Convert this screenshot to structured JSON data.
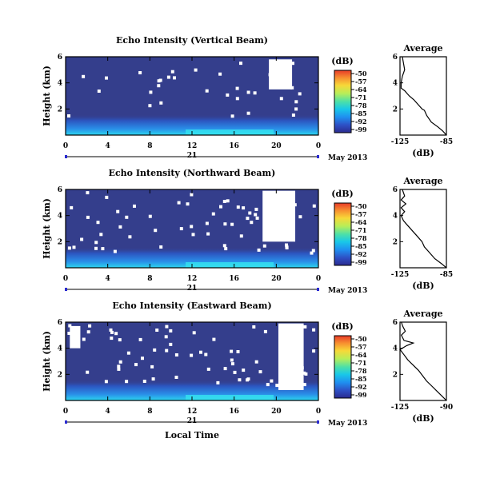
{
  "x_axis": {
    "ticks": [
      "0",
      "4",
      "8",
      "12",
      "16",
      "20",
      "0"
    ],
    "day": "21",
    "date_label": "May 2013",
    "xlabel": "Local Time"
  },
  "colorbar": {
    "unit": "(dB)",
    "ticks": [
      "-50",
      "-57",
      "-64",
      "-71",
      "-78",
      "-85",
      "-92",
      "-99"
    ]
  },
  "profile": {
    "title": "Average",
    "xlabel": "(dB)"
  },
  "colors": {
    "background_field": "#343e8c",
    "missing": "#ffffff",
    "colormap": [
      "#2b2b8f",
      "#2e4fc4",
      "#1f8ff0",
      "#19c8e8",
      "#4de0a8",
      "#b8ee58",
      "#f7d838",
      "#f79030",
      "#e83a28"
    ]
  },
  "chart_data": [
    {
      "type": "heatmap",
      "title": "Echo Intensity (Vertical Beam)",
      "ylabel": "Height (km)",
      "yticks": [
        "2",
        "4",
        "6"
      ],
      "ylim": [
        0,
        6
      ],
      "xlim": [
        0,
        24
      ],
      "missing_regions": [
        {
          "t": [
            19.3,
            21.5
          ],
          "h": [
            3.5,
            5.8
          ]
        }
      ],
      "profile": {
        "xlim": [
          -125,
          -85
        ],
        "xticks": [
          "-125",
          "-85"
        ],
        "yticks": [
          "2",
          "4",
          "6"
        ],
        "points": [
          [
            -85,
            0.0
          ],
          [
            -88,
            0.3
          ],
          [
            -92,
            0.6
          ],
          [
            -98,
            1.0
          ],
          [
            -102,
            1.5
          ],
          [
            -104,
            1.9
          ],
          [
            -106,
            2.0
          ],
          [
            -109,
            2.3
          ],
          [
            -113,
            2.7
          ],
          [
            -117,
            3.0
          ],
          [
            -121,
            3.4
          ],
          [
            -124,
            3.6
          ],
          [
            -124,
            4.0
          ],
          [
            -123,
            4.5
          ],
          [
            -121,
            5.0
          ],
          [
            -122,
            5.5
          ],
          [
            -123,
            6.0
          ]
        ]
      }
    },
    {
      "type": "heatmap",
      "title": "Echo Intensity (Northward Beam)",
      "ylabel": "Height (km)",
      "yticks": [
        "2",
        "4",
        "6"
      ],
      "ylim": [
        0,
        6
      ],
      "xlim": [
        0,
        24
      ],
      "missing_regions": [
        {
          "t": [
            18.7,
            21.8
          ],
          "h": [
            2.0,
            5.9
          ]
        }
      ],
      "profile": {
        "xlim": [
          -125,
          -85
        ],
        "xticks": [
          "-125",
          "-85"
        ],
        "yticks": [
          "2",
          "4",
          "6"
        ],
        "points": [
          [
            -85,
            0.0
          ],
          [
            -89,
            0.3
          ],
          [
            -95,
            0.7
          ],
          [
            -100,
            1.2
          ],
          [
            -104,
            1.6
          ],
          [
            -106,
            2.0
          ],
          [
            -110,
            2.4
          ],
          [
            -114,
            2.8
          ],
          [
            -118,
            3.2
          ],
          [
            -122,
            3.6
          ],
          [
            -124,
            4.0
          ],
          [
            -121,
            4.3
          ],
          [
            -124,
            4.6
          ],
          [
            -120,
            4.9
          ],
          [
            -124,
            5.2
          ],
          [
            -121,
            5.5
          ],
          [
            -123,
            6.0
          ]
        ]
      }
    },
    {
      "type": "heatmap",
      "title": "Echo Intensity (Eastward Beam)",
      "ylabel": "Height (km)",
      "yticks": [
        "2",
        "4",
        "6"
      ],
      "ylim": [
        0,
        6
      ],
      "xlim": [
        0,
        24
      ],
      "missing_regions": [
        {
          "t": [
            20.2,
            22.6
          ],
          "h": [
            0.8,
            5.9
          ]
        },
        {
          "t": [
            0.4,
            1.4
          ],
          "h": [
            4.0,
            5.7
          ]
        }
      ],
      "profile": {
        "xlim": [
          -125,
          -90
        ],
        "xticks": [
          "-125",
          "-90"
        ],
        "yticks": [
          "2",
          "4",
          "6"
        ],
        "points": [
          [
            -90,
            0.0
          ],
          [
            -93,
            0.3
          ],
          [
            -97,
            0.7
          ],
          [
            -101,
            1.1
          ],
          [
            -105,
            1.5
          ],
          [
            -108,
            1.9
          ],
          [
            -111,
            2.3
          ],
          [
            -115,
            2.7
          ],
          [
            -119,
            3.1
          ],
          [
            -122,
            3.5
          ],
          [
            -125,
            3.9
          ],
          [
            -120,
            4.2
          ],
          [
            -115,
            4.4
          ],
          [
            -122,
            4.6
          ],
          [
            -124,
            5.0
          ],
          [
            -121,
            5.3
          ],
          [
            -123,
            5.7
          ],
          [
            -124,
            6.0
          ]
        ]
      }
    }
  ]
}
